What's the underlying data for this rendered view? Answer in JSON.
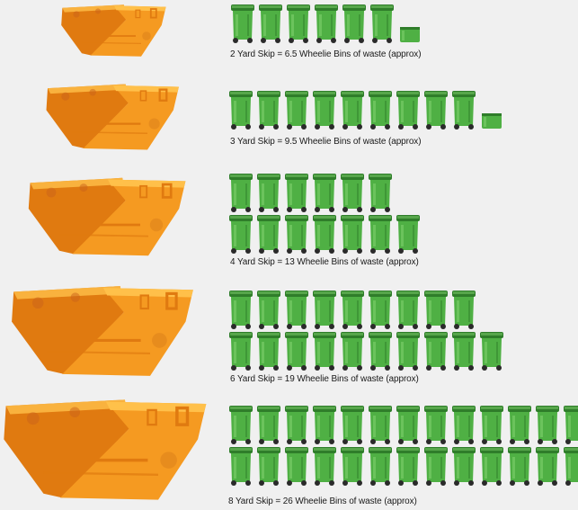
{
  "colors": {
    "background": "#f0f0f0",
    "skip_orange": "#f59a21",
    "skip_dark": "#e07a10",
    "skip_light": "#ffc04a",
    "bin_green": "#4fb044",
    "bin_dark": "#2f7d2a",
    "bin_light": "#7fd06c"
  },
  "icons": {
    "skip": "skip-icon",
    "bin": "wheelie-bin-icon"
  },
  "rows": [
    {
      "caption": "2 Yard Skip = 6.5 Wheelie Bins of waste (approx)",
      "bins": 6.5,
      "lines": [
        6.5
      ]
    },
    {
      "caption": "3 Yard Skip = 9.5 Wheelie Bins of waste (approx)",
      "bins": 9.5,
      "lines": [
        9.5
      ]
    },
    {
      "caption": "4 Yard Skip = 13 Wheelie Bins of waste (approx)",
      "bins": 13,
      "lines": [
        6,
        7
      ]
    },
    {
      "caption": "6 Yard Skip = 19 Wheelie Bins of waste (approx)",
      "bins": 19,
      "lines": [
        9,
        10
      ]
    },
    {
      "caption": "8 Yard Skip = 26 Wheelie Bins of waste (approx)",
      "bins": 26,
      "lines": [
        13,
        13
      ]
    }
  ]
}
